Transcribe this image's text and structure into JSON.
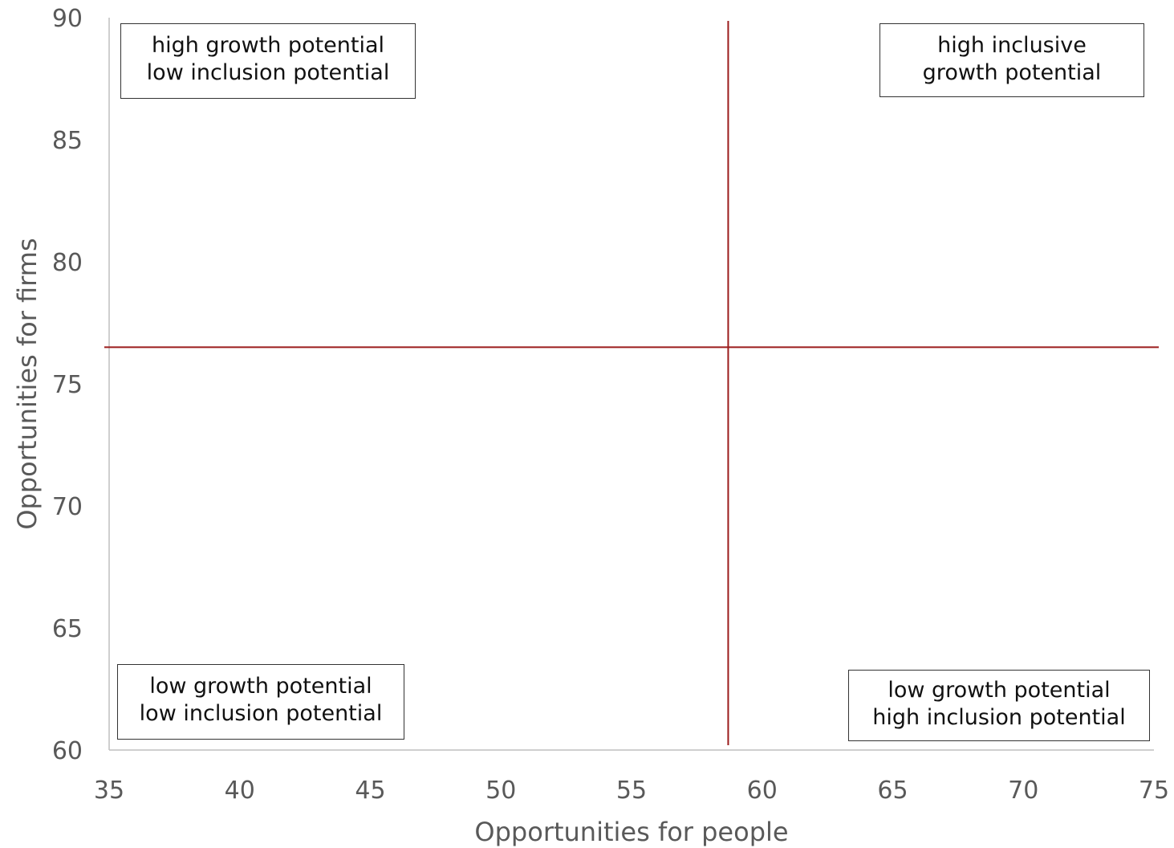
{
  "chart_data": {
    "type": "scatter",
    "xlabel": "Opportunities for people",
    "ylabel": "Opportunities for firms",
    "xlim": [
      35,
      75
    ],
    "ylim": [
      60,
      90
    ],
    "xticks": [
      "35",
      "40",
      "45",
      "50",
      "55",
      "60",
      "65",
      "70",
      "75"
    ],
    "yticks": [
      "60",
      "65",
      "70",
      "75",
      "80",
      "85",
      "90"
    ],
    "reference_lines": {
      "x": 58.7,
      "y": 76.5,
      "color": "#9B1C1C"
    },
    "series": [],
    "quadrant_labels": {
      "top_left": [
        "high growth potential",
        "low inclusion potential"
      ],
      "top_right": [
        "high inclusive",
        "growth potential"
      ],
      "bottom_left": [
        "low growth potential",
        "low inclusion potential"
      ],
      "bottom_right": [
        "low growth potential",
        "high inclusion potential"
      ]
    },
    "grid": false
  }
}
